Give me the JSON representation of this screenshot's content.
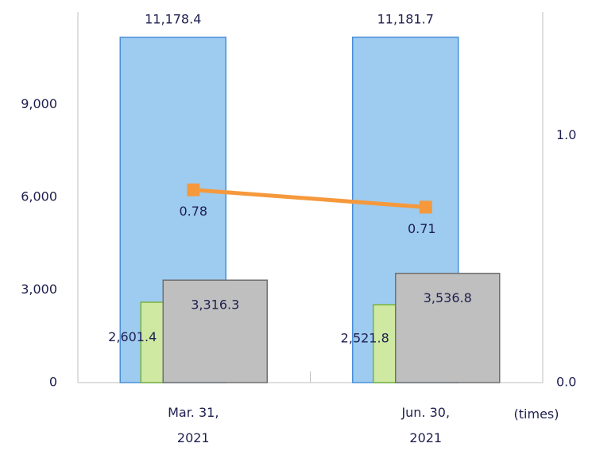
{
  "chart_data": {
    "type": "bar",
    "categories": [
      "Mar. 31, 2021",
      "Jun. 30, 2021"
    ],
    "series": [
      {
        "color": "#9ecbf0",
        "values": [
          11178.4,
          11181.7
        ],
        "value_labels": [
          "11,178.4",
          "11,181.7"
        ]
      },
      {
        "color": "#cfe8a2",
        "values": [
          2601.4,
          2521.8
        ],
        "value_labels": [
          "2,601.4",
          "2,521.8"
        ]
      },
      {
        "color": "#bfbfbf",
        "values": [
          3316.3,
          3536.8
        ],
        "value_labels": [
          "3,316.3",
          "3,536.8"
        ]
      },
      {
        "type": "line",
        "axis": "y2",
        "color": "#f5993c",
        "values": [
          0.78,
          0.71
        ]
      }
    ],
    "ylim": [
      0,
      12000
    ],
    "yticks": [
      0,
      {
        "value": 3000,
        "label": "3,000"
      },
      {
        "value": 6000,
        "label": "6,000"
      },
      {
        "value": 9000,
        "label": "9,000"
      }
    ],
    "y2lim": [
      0,
      1.5
    ],
    "y2ticks": [
      {
        "value": 0,
        "label": "0.0"
      },
      {
        "value": 1,
        "label": "1.0"
      }
    ],
    "y2label": "(times)"
  }
}
